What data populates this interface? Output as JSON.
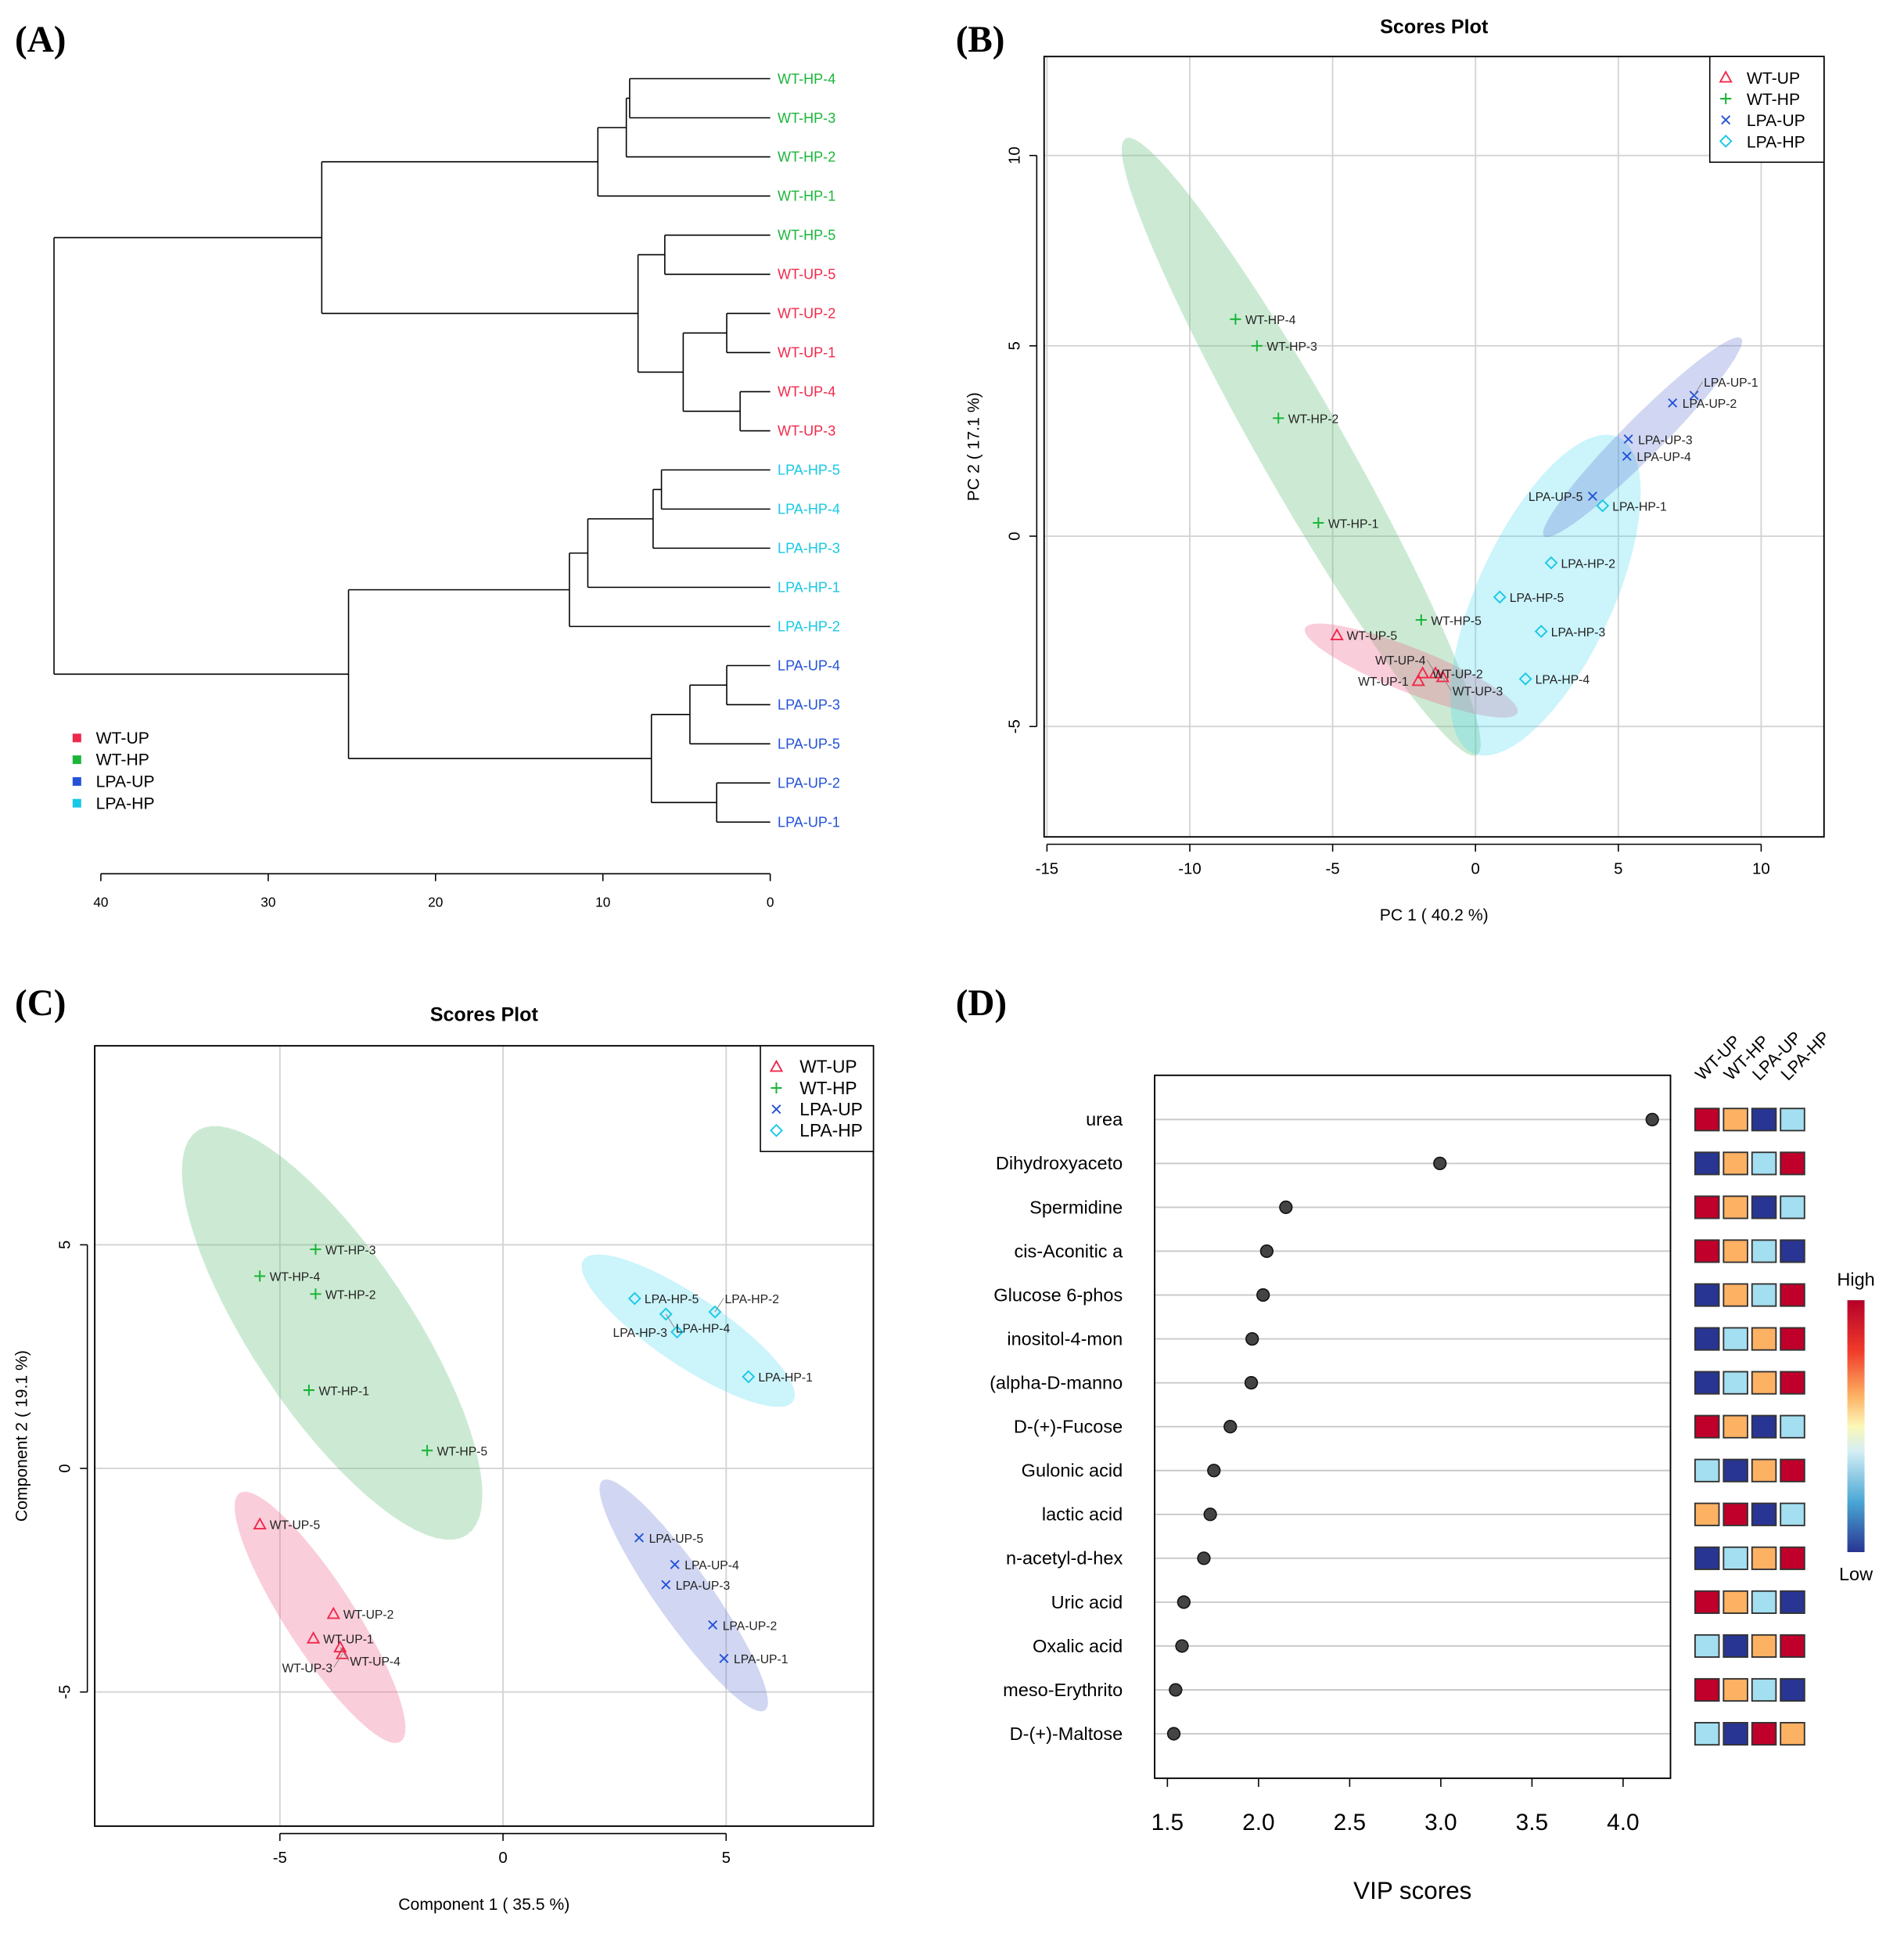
{
  "panels": {
    "a": "(A)",
    "b": "(B)",
    "c": "(C)",
    "d": "(D)"
  },
  "group_colors": {
    "WT-UP": "#f0284a",
    "WT-HP": "#1bb53a",
    "LPA-UP": "#2352d8",
    "LPA-HP": "#18c8e6"
  },
  "ellipse_colors": {
    "WT-UP": "rgba(240,100,140,0.32)",
    "WT-HP": "rgba(110,195,130,0.35)",
    "LPA-UP": "rgba(90,110,210,0.28)",
    "LPA-HP": "rgba(70,215,240,0.28)"
  },
  "chart_data": [
    {
      "type": "dendrogram",
      "leaves": [
        {
          "label": "WT-HP-4",
          "group": "WT-HP"
        },
        {
          "label": "WT-HP-3",
          "group": "WT-HP"
        },
        {
          "label": "WT-HP-2",
          "group": "WT-HP"
        },
        {
          "label": "WT-HP-1",
          "group": "WT-HP"
        },
        {
          "label": "WT-HP-5",
          "group": "WT-HP"
        },
        {
          "label": "WT-UP-5",
          "group": "WT-UP"
        },
        {
          "label": "WT-UP-2",
          "group": "WT-UP"
        },
        {
          "label": "WT-UP-1",
          "group": "WT-UP"
        },
        {
          "label": "WT-UP-4",
          "group": "WT-UP"
        },
        {
          "label": "WT-UP-3",
          "group": "WT-UP"
        },
        {
          "label": "LPA-HP-5",
          "group": "LPA-HP"
        },
        {
          "label": "LPA-HP-4",
          "group": "LPA-HP"
        },
        {
          "label": "LPA-HP-3",
          "group": "LPA-HP"
        },
        {
          "label": "LPA-HP-1",
          "group": "LPA-HP"
        },
        {
          "label": "LPA-HP-2",
          "group": "LPA-HP"
        },
        {
          "label": "LPA-UP-4",
          "group": "LPA-UP"
        },
        {
          "label": "LPA-UP-3",
          "group": "LPA-UP"
        },
        {
          "label": "LPA-UP-5",
          "group": "LPA-UP"
        },
        {
          "label": "LPA-UP-2",
          "group": "LPA-UP"
        },
        {
          "label": "LPA-UP-1",
          "group": "LPA-UP"
        }
      ],
      "tree": {
        "h": 42.8,
        "c": [
          {
            "h": 26.8,
            "c": [
              {
                "h": 10.3,
                "c": [
                  {
                    "h": 8.6,
                    "c": [
                      {
                        "h": 8.4,
                        "c": [
                          0,
                          1
                        ]
                      },
                      2
                    ]
                  },
                  3
                ]
              },
              {
                "h": 7.9,
                "c": [
                  {
                    "h": 6.3,
                    "c": [
                      4,
                      5
                    ]
                  },
                  {
                    "h": 5.2,
                    "c": [
                      {
                        "h": 2.6,
                        "c": [
                          6,
                          7
                        ]
                      },
                      {
                        "h": 1.8,
                        "c": [
                          8,
                          9
                        ]
                      }
                    ]
                  }
                ]
              }
            ]
          },
          {
            "h": 25.2,
            "c": [
              {
                "h": 12.0,
                "c": [
                  {
                    "h": 10.9,
                    "c": [
                      {
                        "h": 7.0,
                        "c": [
                          {
                            "h": 6.5,
                            "c": [
                              10,
                              11
                            ]
                          },
                          12
                        ]
                      },
                      13
                    ]
                  },
                  14
                ]
              },
              {
                "h": 7.1,
                "c": [
                  {
                    "h": 4.8,
                    "c": [
                      {
                        "h": 2.6,
                        "c": [
                          15,
                          16
                        ]
                      },
                      17
                    ]
                  },
                  {
                    "h": 3.2,
                    "c": [
                      18,
                      19
                    ]
                  }
                ]
              }
            ]
          }
        ]
      },
      "xticks": [
        40,
        30,
        20,
        10,
        0
      ],
      "legend": [
        "WT-UP",
        "WT-HP",
        "LPA-UP",
        "LPA-HP"
      ],
      "legend_placement": "bottom-left"
    },
    {
      "type": "scatter",
      "title": "Scores Plot",
      "xlabel": "PC 1 ( 40.2 %)",
      "ylabel": "PC 2 ( 17.1 %)",
      "xlim": [
        -15.1,
        12.2
      ],
      "ylim": [
        -7.9,
        12.6
      ],
      "xticks": [
        -15,
        -10,
        -5,
        0,
        5,
        10
      ],
      "yticks": [
        -5,
        0,
        5,
        10
      ],
      "grid": true,
      "legend": [
        "WT-UP",
        "WT-HP",
        "LPA-UP",
        "LPA-HP"
      ],
      "legend_placement": "top-right",
      "points": [
        {
          "label": "WT-HP-4",
          "group": "WT-HP",
          "x": -8.4,
          "y": 5.7
        },
        {
          "label": "WT-HP-3",
          "group": "WT-HP",
          "x": -7.65,
          "y": 5.0
        },
        {
          "label": "WT-HP-2",
          "group": "WT-HP",
          "x": -6.9,
          "y": 3.1
        },
        {
          "label": "WT-HP-1",
          "group": "WT-HP",
          "x": -5.5,
          "y": 0.35
        },
        {
          "label": "WT-HP-5",
          "group": "WT-HP",
          "x": -1.9,
          "y": -2.2
        },
        {
          "label": "WT-UP-5",
          "group": "WT-UP",
          "x": -4.85,
          "y": -2.6
        },
        {
          "label": "WT-UP-2",
          "group": "WT-UP",
          "x": -1.85,
          "y": -3.6
        },
        {
          "label": "WT-UP-1",
          "group": "WT-UP",
          "x": -2.0,
          "y": -3.8
        },
        {
          "label": "WT-UP-4",
          "group": "WT-UP",
          "x": -1.4,
          "y": -3.6
        },
        {
          "label": "WT-UP-3",
          "group": "WT-UP",
          "x": -1.15,
          "y": -3.7
        },
        {
          "label": "LPA-HP-4",
          "group": "LPA-HP",
          "x": 1.75,
          "y": -3.75
        },
        {
          "label": "LPA-HP-3",
          "group": "LPA-HP",
          "x": 2.3,
          "y": -2.5
        },
        {
          "label": "LPA-HP-5",
          "group": "LPA-HP",
          "x": 0.85,
          "y": -1.6
        },
        {
          "label": "LPA-HP-2",
          "group": "LPA-HP",
          "x": 2.65,
          "y": -0.7
        },
        {
          "label": "LPA-HP-1",
          "group": "LPA-HP",
          "x": 4.45,
          "y": 0.8
        },
        {
          "label": "LPA-UP-5",
          "group": "LPA-UP",
          "x": 4.1,
          "y": 1.05
        },
        {
          "label": "LPA-UP-4",
          "group": "LPA-UP",
          "x": 5.3,
          "y": 2.1
        },
        {
          "label": "LPA-UP-3",
          "group": "LPA-UP",
          "x": 5.35,
          "y": 2.55
        },
        {
          "label": "LPA-UP-2",
          "group": "LPA-UP",
          "x": 6.9,
          "y": 3.5
        },
        {
          "label": "LPA-UP-1",
          "group": "LPA-UP",
          "x": 7.65,
          "y": 3.7
        }
      ],
      "ellipses": [
        {
          "group": "WT-HP",
          "center": [
            -6.1,
            2.35
          ],
          "major": [
            -6.15,
            8.1
          ],
          "minor": [
            1.3,
            0.56
          ]
        },
        {
          "group": "WT-UP",
          "center": [
            -2.25,
            -3.53
          ],
          "major": [
            3.72,
            -1.11
          ],
          "minor": [
            0.29,
            0.54
          ]
        },
        {
          "group": "LPA-HP",
          "center": [
            2.45,
            -1.55
          ],
          "major": [
            2.55,
            4.15
          ],
          "minor": [
            2.15,
            -0.74
          ]
        },
        {
          "group": "LPA-UP",
          "center": [
            5.85,
            2.6
          ],
          "major": [
            3.45,
            2.6
          ],
          "minor": [
            0.49,
            -0.36
          ]
        }
      ]
    },
    {
      "type": "scatter",
      "title": "Scores Plot",
      "xlabel": "Component 1 ( 35.5 %)",
      "ylabel": "Component 2 ( 19.1 %)",
      "xlim": [
        -9.15,
        8.3
      ],
      "ylim": [
        -8.0,
        9.45
      ],
      "xticks": [
        -5,
        0,
        5
      ],
      "yticks": [
        -5,
        0,
        5
      ],
      "grid": true,
      "legend": [
        "WT-UP",
        "WT-HP",
        "LPA-UP",
        "LPA-HP"
      ],
      "legend_placement": "top-right",
      "points": [
        {
          "label": "WT-HP-3",
          "group": "WT-HP",
          "x": -4.2,
          "y": 4.9
        },
        {
          "label": "WT-HP-4",
          "group": "WT-HP",
          "x": -5.45,
          "y": 4.3
        },
        {
          "label": "WT-HP-2",
          "group": "WT-HP",
          "x": -4.2,
          "y": 3.9
        },
        {
          "label": "WT-HP-1",
          "group": "WT-HP",
          "x": -4.35,
          "y": 1.75
        },
        {
          "label": "WT-HP-5",
          "group": "WT-HP",
          "x": -1.7,
          "y": 0.4
        },
        {
          "label": "WT-UP-5",
          "group": "WT-UP",
          "x": -5.45,
          "y": -1.25
        },
        {
          "label": "WT-UP-2",
          "group": "WT-UP",
          "x": -3.8,
          "y": -3.25
        },
        {
          "label": "WT-UP-1",
          "group": "WT-UP",
          "x": -4.25,
          "y": -3.8
        },
        {
          "label": "WT-UP-4",
          "group": "WT-UP",
          "x": -3.65,
          "y": -4.0
        },
        {
          "label": "WT-UP-3",
          "group": "WT-UP",
          "x": -3.6,
          "y": -4.15
        },
        {
          "label": "LPA-HP-5",
          "group": "LPA-HP",
          "x": 2.95,
          "y": 3.8
        },
        {
          "label": "LPA-HP-4",
          "group": "LPA-HP",
          "x": 3.65,
          "y": 3.45
        },
        {
          "label": "LPA-HP-2",
          "group": "LPA-HP",
          "x": 4.75,
          "y": 3.5
        },
        {
          "label": "LPA-HP-3",
          "group": "LPA-HP",
          "x": 3.9,
          "y": 3.05
        },
        {
          "label": "LPA-HP-1",
          "group": "LPA-HP",
          "x": 5.5,
          "y": 2.05
        },
        {
          "label": "LPA-UP-5",
          "group": "LPA-UP",
          "x": 3.05,
          "y": -1.55
        },
        {
          "label": "LPA-UP-4",
          "group": "LPA-UP",
          "x": 3.85,
          "y": -2.15
        },
        {
          "label": "LPA-UP-3",
          "group": "LPA-UP",
          "x": 3.65,
          "y": -2.6
        },
        {
          "label": "LPA-UP-2",
          "group": "LPA-UP",
          "x": 4.7,
          "y": -3.5
        },
        {
          "label": "LPA-UP-1",
          "group": "LPA-UP",
          "x": 4.95,
          "y": -4.25
        }
      ],
      "ellipses": [
        {
          "group": "WT-HP",
          "center": [
            -3.83,
            3.03
          ],
          "major": [
            -3.02,
            4.52
          ],
          "minor": [
            1.49,
            0.99
          ]
        },
        {
          "group": "WT-UP",
          "center": [
            -4.1,
            -3.33
          ],
          "major": [
            -1.8,
            2.78
          ],
          "minor": [
            0.65,
            0.41
          ]
        },
        {
          "group": "LPA-HP",
          "center": [
            4.15,
            3.08
          ],
          "major": [
            2.35,
            -1.58
          ],
          "minor": [
            -0.43,
            -0.64
          ]
        },
        {
          "group": "LPA-UP",
          "center": [
            4.05,
            -2.84
          ],
          "major": [
            1.82,
            -2.57
          ],
          "minor": [
            0.5,
            0.35
          ]
        }
      ]
    },
    {
      "type": "dot",
      "xlabel": "VIP scores",
      "xlim": [
        1.43,
        4.26
      ],
      "xticks": [
        "1.5",
        "2.0",
        "2.5",
        "3.0",
        "3.5",
        "4.0"
      ],
      "categories": [
        "urea",
        "Dihydroxyaceto",
        "Spermidine",
        "cis-Aconitic a",
        "Glucose 6-phos",
        "inositol-4-mon",
        "(alpha-D-manno",
        "D-(+)-Fucose",
        "Gulonic acid",
        "lactic acid",
        "n-acetyl-d-hex",
        "Uric acid",
        "Oxalic acid",
        "meso-Erythrito",
        "D-(+)-Maltose"
      ],
      "values": [
        4.16,
        2.995,
        2.15,
        2.045,
        2.025,
        1.965,
        1.96,
        1.845,
        1.755,
        1.735,
        1.7,
        1.59,
        1.58,
        1.545,
        1.535
      ],
      "heatmap": {
        "columns": [
          "WT-UP",
          "WT-HP",
          "LPA-UP",
          "LPA-HP"
        ],
        "level_colors": {
          "1": "#283593",
          "2": "#a3dff0",
          "3": "#fdb163",
          "4": "#c0002a"
        },
        "levels": [
          [
            4,
            3,
            1,
            2
          ],
          [
            1,
            3,
            2,
            4
          ],
          [
            4,
            3,
            1,
            2
          ],
          [
            4,
            3,
            2,
            1
          ],
          [
            1,
            3,
            2,
            4
          ],
          [
            1,
            2,
            3,
            4
          ],
          [
            1,
            2,
            3,
            4
          ],
          [
            4,
            3,
            1,
            2
          ],
          [
            2,
            1,
            3,
            4
          ],
          [
            3,
            4,
            1,
            2
          ],
          [
            1,
            2,
            3,
            4
          ],
          [
            4,
            3,
            2,
            1
          ],
          [
            2,
            1,
            3,
            4
          ],
          [
            4,
            3,
            2,
            1
          ],
          [
            2,
            1,
            4,
            3
          ]
        ]
      },
      "colorbar": {
        "high": "High",
        "low": "Low"
      }
    }
  ]
}
